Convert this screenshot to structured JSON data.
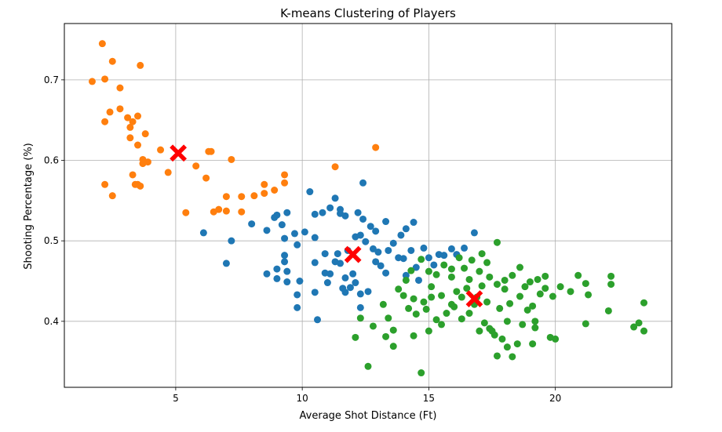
{
  "chart_data": {
    "type": "scatter",
    "title": "K-means Clustering of Players",
    "xlabel": "Average Shot Distance (Ft)",
    "ylabel": "Shooting Percentage (%)",
    "xlim": [
      0.6,
      24.6
    ],
    "ylim": [
      0.318,
      0.77
    ],
    "xticks": [
      5,
      10,
      15,
      20
    ],
    "yticks": [
      0.4,
      0.5,
      0.6,
      0.7
    ],
    "xtick_labels": [
      "5",
      "10",
      "15",
      "20"
    ],
    "ytick_labels": [
      "0.4",
      "0.5",
      "0.6",
      "0.7"
    ],
    "grid": true,
    "series": [
      {
        "color": "#ff7f0e",
        "points": [
          [
            2.1,
            0.745
          ],
          [
            2.5,
            0.723
          ],
          [
            1.7,
            0.698
          ],
          [
            2.2,
            0.701
          ],
          [
            2.8,
            0.69
          ],
          [
            3.6,
            0.718
          ],
          [
            2.4,
            0.66
          ],
          [
            2.8,
            0.664
          ],
          [
            2.2,
            0.648
          ],
          [
            3.1,
            0.653
          ],
          [
            3.5,
            0.655
          ],
          [
            3.3,
            0.648
          ],
          [
            3.2,
            0.641
          ],
          [
            3.2,
            0.628
          ],
          [
            3.8,
            0.633
          ],
          [
            3.5,
            0.619
          ],
          [
            4.4,
            0.613
          ],
          [
            3.7,
            0.601
          ],
          [
            3.9,
            0.598
          ],
          [
            3.7,
            0.596
          ],
          [
            3.5,
            0.57
          ],
          [
            3.3,
            0.582
          ],
          [
            3.4,
            0.57
          ],
          [
            3.6,
            0.568
          ],
          [
            2.2,
            0.57
          ],
          [
            2.5,
            0.556
          ],
          [
            4.7,
            0.585
          ],
          [
            5.8,
            0.593
          ],
          [
            6.2,
            0.578
          ],
          [
            6.3,
            0.611
          ],
          [
            6.4,
            0.611
          ],
          [
            7.2,
            0.601
          ],
          [
            5.4,
            0.535
          ],
          [
            6.5,
            0.536
          ],
          [
            6.7,
            0.539
          ],
          [
            7.0,
            0.537
          ],
          [
            7.0,
            0.555
          ],
          [
            7.6,
            0.536
          ],
          [
            7.6,
            0.555
          ],
          [
            8.1,
            0.556
          ],
          [
            8.5,
            0.57
          ],
          [
            8.5,
            0.559
          ],
          [
            8.9,
            0.563
          ],
          [
            9.3,
            0.582
          ],
          [
            9.3,
            0.572
          ],
          [
            11.3,
            0.592
          ],
          [
            12.9,
            0.616
          ]
        ]
      },
      {
        "color": "#1f77b4",
        "points": [
          [
            6.1,
            0.51
          ],
          [
            7.2,
            0.5
          ],
          [
            7.0,
            0.472
          ],
          [
            8.0,
            0.521
          ],
          [
            8.6,
            0.513
          ],
          [
            8.9,
            0.529
          ],
          [
            9.0,
            0.532
          ],
          [
            9.4,
            0.535
          ],
          [
            9.2,
            0.52
          ],
          [
            9.3,
            0.503
          ],
          [
            9.0,
            0.465
          ],
          [
            9.0,
            0.453
          ],
          [
            8.6,
            0.459
          ],
          [
            9.3,
            0.482
          ],
          [
            9.3,
            0.474
          ],
          [
            9.4,
            0.462
          ],
          [
            9.4,
            0.449
          ],
          [
            9.7,
            0.509
          ],
          [
            9.8,
            0.495
          ],
          [
            10.1,
            0.511
          ],
          [
            10.3,
            0.561
          ],
          [
            10.5,
            0.533
          ],
          [
            10.8,
            0.535
          ],
          [
            11.1,
            0.541
          ],
          [
            11.3,
            0.553
          ],
          [
            11.5,
            0.539
          ],
          [
            11.5,
            0.534
          ],
          [
            11.7,
            0.531
          ],
          [
            12.2,
            0.535
          ],
          [
            12.4,
            0.527
          ],
          [
            12.7,
            0.518
          ],
          [
            12.9,
            0.512
          ],
          [
            13.3,
            0.524
          ],
          [
            13.9,
            0.507
          ],
          [
            14.1,
            0.515
          ],
          [
            14.4,
            0.523
          ],
          [
            12.4,
            0.572
          ],
          [
            10.5,
            0.504
          ],
          [
            10.9,
            0.484
          ],
          [
            10.5,
            0.473
          ],
          [
            10.5,
            0.436
          ],
          [
            10.9,
            0.46
          ],
          [
            11.1,
            0.459
          ],
          [
            11.3,
            0.474
          ],
          [
            11.4,
            0.484
          ],
          [
            11.5,
            0.472
          ],
          [
            11.7,
            0.454
          ],
          [
            11.9,
            0.442
          ],
          [
            12.0,
            0.459
          ],
          [
            12.1,
            0.505
          ],
          [
            12.3,
            0.507
          ],
          [
            12.5,
            0.499
          ],
          [
            12.8,
            0.49
          ],
          [
            12.9,
            0.474
          ],
          [
            13.0,
            0.486
          ],
          [
            13.1,
            0.469
          ],
          [
            13.3,
            0.46
          ],
          [
            13.4,
            0.488
          ],
          [
            13.6,
            0.497
          ],
          [
            13.8,
            0.479
          ],
          [
            14.0,
            0.478
          ],
          [
            14.1,
            0.457
          ],
          [
            14.3,
            0.488
          ],
          [
            14.5,
            0.467
          ],
          [
            14.6,
            0.451
          ],
          [
            14.8,
            0.491
          ],
          [
            15.0,
            0.479
          ],
          [
            15.2,
            0.47
          ],
          [
            15.4,
            0.483
          ],
          [
            15.6,
            0.482
          ],
          [
            15.9,
            0.49
          ],
          [
            16.1,
            0.483
          ],
          [
            16.4,
            0.491
          ],
          [
            16.8,
            0.51
          ],
          [
            9.8,
            0.433
          ],
          [
            9.9,
            0.45
          ],
          [
            9.8,
            0.417
          ],
          [
            10.6,
            0.402
          ],
          [
            11.7,
            0.436
          ],
          [
            12.3,
            0.417
          ],
          [
            12.3,
            0.434
          ],
          [
            12.6,
            0.437
          ],
          [
            12.1,
            0.448
          ],
          [
            11.8,
            0.488
          ],
          [
            11.0,
            0.448
          ],
          [
            11.6,
            0.441
          ]
        ]
      },
      {
        "color": "#2ca02c",
        "points": [
          [
            12.1,
            0.38
          ],
          [
            12.3,
            0.404
          ],
          [
            12.6,
            0.344
          ],
          [
            12.8,
            0.394
          ],
          [
            13.2,
            0.421
          ],
          [
            13.4,
            0.404
          ],
          [
            13.6,
            0.369
          ],
          [
            13.6,
            0.389
          ],
          [
            14.0,
            0.432
          ],
          [
            14.2,
            0.416
          ],
          [
            14.4,
            0.382
          ],
          [
            14.5,
            0.409
          ],
          [
            14.7,
            0.336
          ],
          [
            14.9,
            0.415
          ],
          [
            15.1,
            0.43
          ],
          [
            15.3,
            0.402
          ],
          [
            15.5,
            0.396
          ],
          [
            15.7,
            0.41
          ],
          [
            15.9,
            0.421
          ],
          [
            16.1,
            0.437
          ],
          [
            16.3,
            0.43
          ],
          [
            16.5,
            0.441
          ],
          [
            16.6,
            0.452
          ],
          [
            16.8,
            0.421
          ],
          [
            17.0,
            0.388
          ],
          [
            17.2,
            0.398
          ],
          [
            17.4,
            0.391
          ],
          [
            17.6,
            0.383
          ],
          [
            17.7,
            0.357
          ],
          [
            17.9,
            0.378
          ],
          [
            18.1,
            0.368
          ],
          [
            18.3,
            0.356
          ],
          [
            18.5,
            0.372
          ],
          [
            18.7,
            0.396
          ],
          [
            18.9,
            0.414
          ],
          [
            19.1,
            0.372
          ],
          [
            19.2,
            0.392
          ],
          [
            19.4,
            0.434
          ],
          [
            19.6,
            0.456
          ],
          [
            19.8,
            0.38
          ],
          [
            20.0,
            0.378
          ],
          [
            20.2,
            0.443
          ],
          [
            20.6,
            0.437
          ],
          [
            20.9,
            0.457
          ],
          [
            21.2,
            0.447
          ],
          [
            21.3,
            0.433
          ],
          [
            21.2,
            0.397
          ],
          [
            22.1,
            0.413
          ],
          [
            22.2,
            0.446
          ],
          [
            22.2,
            0.456
          ],
          [
            23.1,
            0.393
          ],
          [
            23.3,
            0.398
          ],
          [
            23.5,
            0.423
          ],
          [
            23.5,
            0.388
          ],
          [
            14.1,
            0.451
          ],
          [
            14.3,
            0.463
          ],
          [
            14.7,
            0.477
          ],
          [
            15.0,
            0.462
          ],
          [
            15.3,
            0.458
          ],
          [
            15.6,
            0.47
          ],
          [
            15.9,
            0.465
          ],
          [
            16.2,
            0.479
          ],
          [
            16.4,
            0.466
          ],
          [
            16.7,
            0.476
          ],
          [
            17.1,
            0.484
          ],
          [
            17.3,
            0.473
          ],
          [
            17.7,
            0.498
          ],
          [
            17.0,
            0.462
          ],
          [
            17.4,
            0.455
          ],
          [
            17.7,
            0.446
          ],
          [
            18.0,
            0.451
          ],
          [
            18.3,
            0.457
          ],
          [
            18.6,
            0.467
          ],
          [
            18.8,
            0.443
          ],
          [
            19.0,
            0.449
          ],
          [
            19.3,
            0.452
          ],
          [
            19.6,
            0.441
          ],
          [
            13.8,
            0.44
          ],
          [
            14.4,
            0.428
          ],
          [
            15.1,
            0.443
          ],
          [
            15.5,
            0.432
          ],
          [
            16.0,
            0.418
          ],
          [
            16.3,
            0.403
          ],
          [
            16.9,
            0.43
          ],
          [
            17.3,
            0.424
          ],
          [
            17.8,
            0.416
          ],
          [
            18.2,
            0.422
          ],
          [
            18.6,
            0.431
          ],
          [
            19.1,
            0.419
          ],
          [
            14.8,
            0.424
          ],
          [
            15.9,
            0.455
          ],
          [
            17.1,
            0.444
          ],
          [
            18.0,
            0.44
          ],
          [
            16.6,
            0.41
          ],
          [
            13.3,
            0.381
          ],
          [
            15.0,
            0.388
          ],
          [
            17.5,
            0.388
          ],
          [
            18.1,
            0.4
          ],
          [
            19.2,
            0.4
          ],
          [
            19.9,
            0.431
          ]
        ]
      }
    ],
    "centroids": {
      "color": "#ff0000",
      "points": [
        [
          5.1,
          0.609
        ],
        [
          12.0,
          0.483
        ],
        [
          16.8,
          0.428
        ]
      ]
    }
  }
}
